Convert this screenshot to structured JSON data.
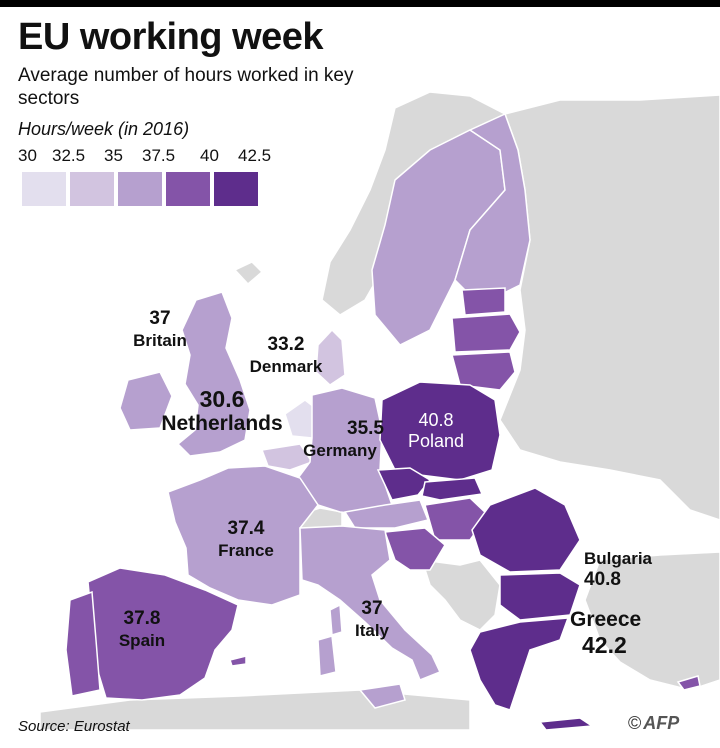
{
  "title": "EU working week",
  "subtitle": "Average number of hours worked in key sectors",
  "legend": {
    "title": "Hours/week (in 2016)",
    "ticks": [
      "30",
      "32.5",
      "35",
      "37.5",
      "40",
      "42.5"
    ],
    "colors": [
      "#e3dfee",
      "#d2c4e0",
      "#b6a0cf",
      "#8454a8",
      "#5e2d8c"
    ]
  },
  "colors": {
    "background": "#ffffff",
    "non_eu_land": "#d9d9d9",
    "borders": "#ffffff"
  },
  "countries": {
    "britain": {
      "name": "Britain",
      "hours": "37",
      "color": "#b6a0cf"
    },
    "denmark": {
      "name": "Denmark",
      "hours": "33.2",
      "color": "#d2c4e0"
    },
    "netherlands": {
      "name": "Netherlands",
      "hours": "30.6",
      "color": "#e3dfee"
    },
    "germany": {
      "name": "Germany",
      "hours": "35.5",
      "color": "#b6a0cf"
    },
    "poland": {
      "name": "Poland",
      "hours": "40.8",
      "color": "#5e2d8c"
    },
    "france": {
      "name": "France",
      "hours": "37.4",
      "color": "#b6a0cf"
    },
    "spain": {
      "name": "Spain",
      "hours": "37.8",
      "color": "#8454a8"
    },
    "italy": {
      "name": "Italy",
      "hours": "37",
      "color": "#b6a0cf"
    },
    "bulgaria": {
      "name": "Bulgaria",
      "hours": "40.8",
      "color": "#5e2d8c"
    },
    "greece": {
      "name": "Greece",
      "hours": "42.2",
      "color": "#5e2d8c"
    }
  },
  "source": "Source: Eurostat",
  "credit": {
    "symbol": "©",
    "agency": "AFP"
  }
}
